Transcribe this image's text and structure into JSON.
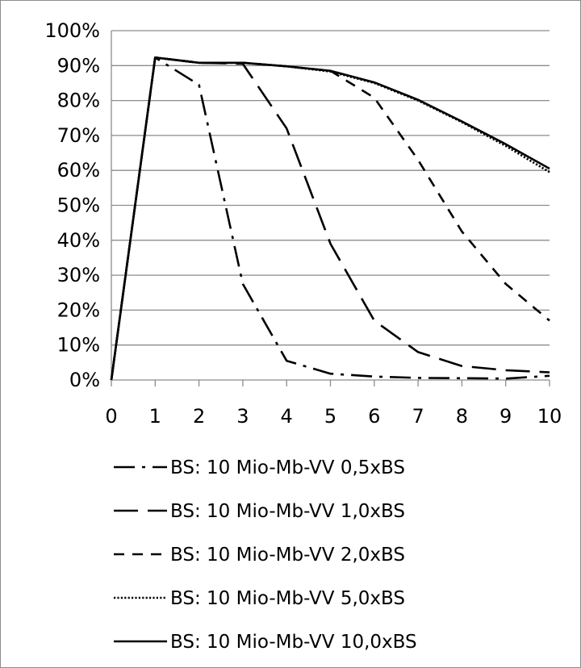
{
  "chart_data": {
    "type": "line",
    "x": [
      0,
      1,
      2,
      3,
      4,
      5,
      6,
      7,
      8,
      9,
      10
    ],
    "xlim": [
      0,
      10
    ],
    "ylim": [
      0,
      100
    ],
    "x_ticks": [
      "0",
      "1",
      "2",
      "3",
      "4",
      "5",
      "6",
      "7",
      "8",
      "9",
      "10"
    ],
    "y_ticks": [
      "0%",
      "10%",
      "20%",
      "30%",
      "40%",
      "50%",
      "60%",
      "70%",
      "80%",
      "90%",
      "100%"
    ],
    "grid": true,
    "legend_position": "bottom",
    "line_color": "#000000",
    "grid_color": "#8c8c8c",
    "series": [
      {
        "name": "BS: 10 Mio-Mb-VV 0,5xBS",
        "style": "dash-dot",
        "values": [
          0,
          92.3,
          84.5,
          27.5,
          5.5,
          1.8,
          1.0,
          0.6,
          0.5,
          0.4,
          1.2
        ]
      },
      {
        "name": "BS: 10 Mio-Mb-VV 1,0xBS",
        "style": "long-dash",
        "values": [
          0,
          92.3,
          90.8,
          90.5,
          72.0,
          39.0,
          17.0,
          8.0,
          4.0,
          2.8,
          2.2
        ]
      },
      {
        "name": "BS: 10 Mio-Mb-VV 2,0xBS",
        "style": "dash",
        "values": [
          0,
          92.3,
          90.8,
          90.8,
          89.8,
          88.5,
          80.8,
          63.0,
          42.5,
          27.5,
          17.0
        ]
      },
      {
        "name": "BS: 10 Mio-Mb-VV 5,0xBS",
        "style": "dotted",
        "values": [
          0,
          92.3,
          90.8,
          90.8,
          89.8,
          88.3,
          85.0,
          80.0,
          73.8,
          67.0,
          59.5
        ]
      },
      {
        "name": "BS: 10 Mio-Mb-VV 10,0xBS",
        "style": "solid",
        "values": [
          0,
          92.3,
          90.8,
          90.8,
          89.8,
          88.5,
          85.2,
          80.2,
          74.0,
          67.5,
          60.5
        ]
      }
    ]
  }
}
